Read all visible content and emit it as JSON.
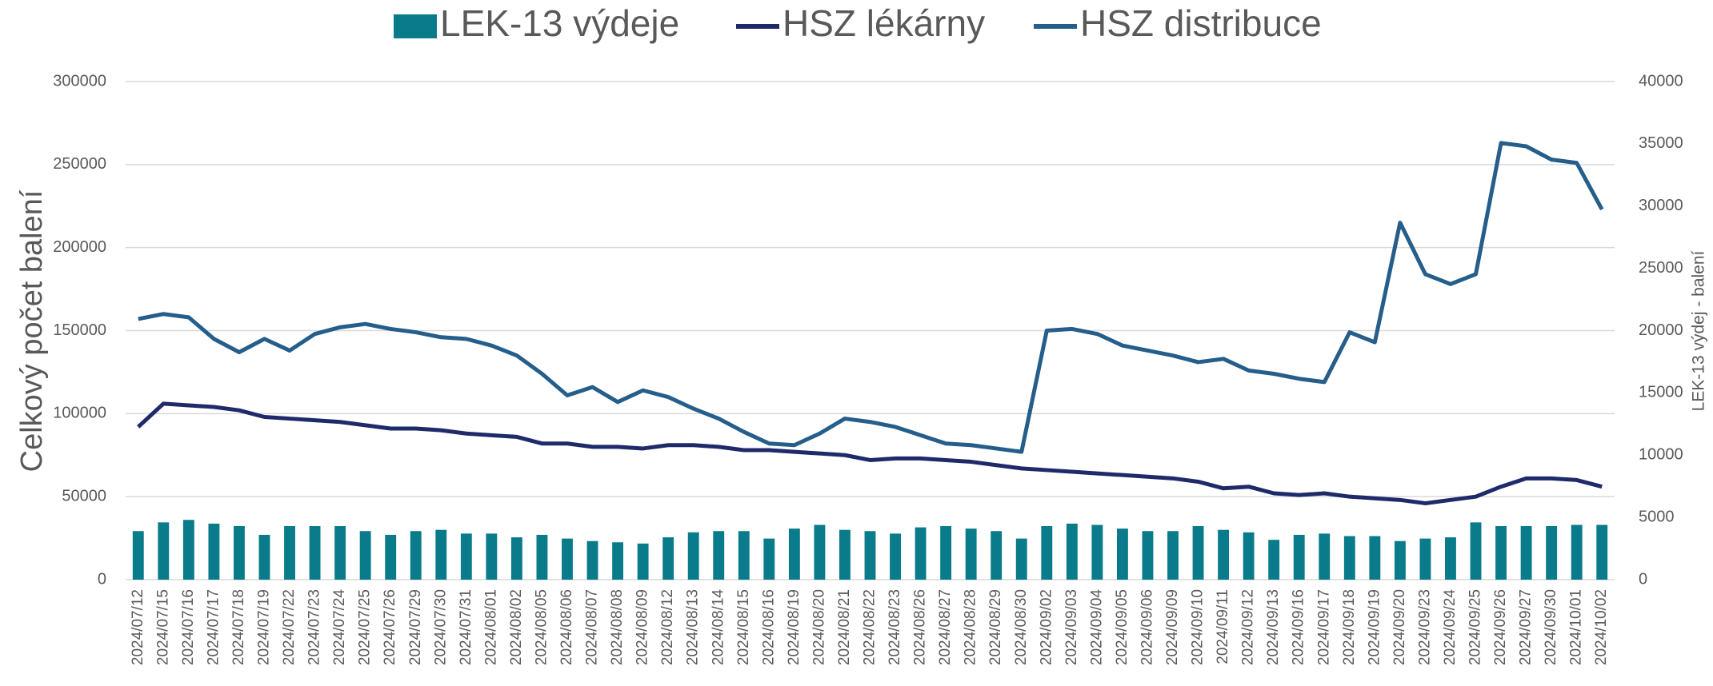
{
  "chart_data": {
    "type": "bar-line",
    "y_label": "Celkový počet  balení",
    "y2_label": "LEK-13 výdej - balení",
    "categories": [
      "2024/07/12",
      "2024/07/15",
      "2024/07/16",
      "2024/07/17",
      "2024/07/18",
      "2024/07/19",
      "2024/07/22",
      "2024/07/23",
      "2024/07/24",
      "2024/07/25",
      "2024/07/26",
      "2024/07/29",
      "2024/07/30",
      "2024/07/31",
      "2024/08/01",
      "2024/08/02",
      "2024/08/05",
      "2024/08/06",
      "2024/08/07",
      "2024/08/08",
      "2024/08/09",
      "2024/08/12",
      "2024/08/13",
      "2024/08/14",
      "2024/08/15",
      "2024/08/16",
      "2024/08/19",
      "2024/08/20",
      "2024/08/21",
      "2024/08/22",
      "2024/08/23",
      "2024/08/26",
      "2024/08/27",
      "2024/08/28",
      "2024/08/29",
      "2024/08/30",
      "2024/09/02",
      "2024/09/03",
      "2024/09/04",
      "2024/09/05",
      "2024/09/06",
      "2024/09/09",
      "2024/09/10",
      "2024/09/11",
      "2024/09/12",
      "2024/09/13",
      "2024/09/16",
      "2024/09/17",
      "2024/09/18",
      "2024/09/19",
      "2024/09/20",
      "2024/09/23",
      "2024/09/24",
      "2024/09/25",
      "2024/09/26",
      "2024/09/27",
      "2024/09/30",
      "2024/10/01",
      "2024/10/02"
    ],
    "series": [
      {
        "name": "LEK-13 výdeje",
        "type": "bar",
        "axis": "y2",
        "color": "#0a7b8a",
        "values": [
          3900,
          4600,
          4800,
          4500,
          4300,
          3600,
          4300,
          4300,
          4300,
          3900,
          3600,
          3900,
          4000,
          3700,
          3700,
          3400,
          3600,
          3300,
          3100,
          3000,
          2900,
          3400,
          3800,
          3900,
          3900,
          3300,
          4100,
          4400,
          4000,
          3900,
          3700,
          4200,
          4300,
          4100,
          3900,
          3300,
          4300,
          4500,
          4400,
          4100,
          3900,
          3900,
          4300,
          4000,
          3800,
          3200,
          3600,
          3700,
          3500,
          3500,
          3100,
          3300,
          3400,
          4600,
          4300,
          4300,
          4300,
          4400,
          4400
        ]
      },
      {
        "name": "HSZ lékárny",
        "type": "line",
        "axis": "y",
        "color": "#1f2a6b",
        "values": [
          92000,
          106000,
          105000,
          104000,
          102000,
          98000,
          97000,
          96000,
          95000,
          93000,
          91000,
          91000,
          90000,
          88000,
          87000,
          86000,
          82000,
          82000,
          80000,
          80000,
          79000,
          81000,
          81000,
          80000,
          78000,
          78000,
          77000,
          76000,
          75000,
          72000,
          73000,
          73000,
          72000,
          71000,
          69000,
          67000,
          66000,
          65000,
          64000,
          63000,
          62000,
          61000,
          59000,
          55000,
          56000,
          52000,
          51000,
          52000,
          50000,
          49000,
          48000,
          46000,
          48000,
          50000,
          56000,
          61000,
          61000,
          60000,
          56000
        ]
      },
      {
        "name": "HSZ distribuce",
        "type": "line",
        "axis": "y",
        "color": "#255e8a",
        "values": [
          157000,
          160000,
          158000,
          145000,
          137000,
          145000,
          138000,
          148000,
          152000,
          154000,
          151000,
          149000,
          146000,
          145000,
          141000,
          135000,
          124000,
          111000,
          116000,
          107000,
          114000,
          110000,
          103000,
          97000,
          89000,
          82000,
          81000,
          88000,
          97000,
          95000,
          92000,
          87000,
          82000,
          81000,
          79000,
          77000,
          150000,
          151000,
          148000,
          141000,
          138000,
          135000,
          131000,
          133000,
          126000,
          124000,
          121000,
          119000,
          149000,
          143000,
          215000,
          184000,
          178000,
          184000,
          263000,
          261000,
          253000,
          251000,
          223000
        ]
      }
    ],
    "ylim": [
      0,
      300000
    ],
    "yticks": [
      0,
      50000,
      100000,
      150000,
      200000,
      250000,
      300000
    ],
    "y2lim": [
      0,
      40000
    ],
    "y2ticks": [
      0,
      5000,
      10000,
      15000,
      20000,
      25000,
      30000,
      35000,
      40000
    ],
    "grid": true,
    "legend": "top"
  }
}
